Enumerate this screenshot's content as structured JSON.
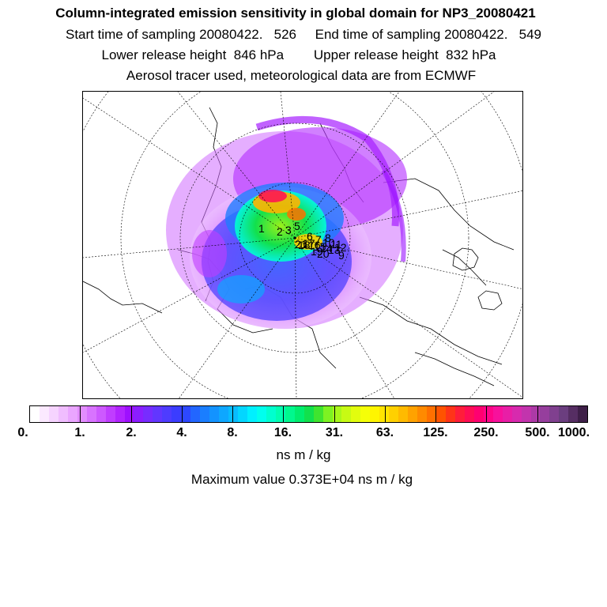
{
  "header": {
    "title": "Column-integrated emission sensitivity in global domain for NP3_20080421",
    "sampling": "Start time of sampling 20080422.   526     End time of sampling 20080422.   549",
    "release": "Lower release height  846 hPa        Upper release height  832 hPa",
    "info": "Aerosol tracer used, meteorological data are from ECMWF"
  },
  "map": {
    "release_labels": [
      "1",
      "2",
      "3",
      "5",
      "6",
      "7",
      "8",
      "9",
      "10",
      "11",
      "12",
      "13",
      "14",
      "15",
      "16",
      "17",
      "18",
      "19",
      "20",
      "21"
    ]
  },
  "colorbar": {
    "tick_labels": [
      "0.",
      "1.",
      "2.",
      "4.",
      "8.",
      "16.",
      "31.",
      "63.",
      "125.",
      "250.",
      "500.",
      "1000."
    ],
    "colors": [
      "#ffffff",
      "#fbe9ff",
      "#f6d4ff",
      "#f0bdff",
      "#eaa6ff",
      "#e28dff",
      "#d873ff",
      "#cd59ff",
      "#c03dff",
      "#b224ff",
      "#9e10ff",
      "#8b1eff",
      "#772cff",
      "#6236ff",
      "#4e3cff",
      "#3b3dff",
      "#2d48ff",
      "#2266ff",
      "#1a7eff",
      "#1393ff",
      "#0ea7ff",
      "#08bcff",
      "#03d6ff",
      "#00f0ff",
      "#00ffee",
      "#00ffcf",
      "#00ffb0",
      "#00f88e",
      "#00ed6e",
      "#12e04c",
      "#3fe42f",
      "#7df222",
      "#a8f71a",
      "#c7fa14",
      "#e2fd0e",
      "#f5ff08",
      "#fff500",
      "#ffe400",
      "#ffd000",
      "#ffba00",
      "#ffa200",
      "#ff8a00",
      "#ff7000",
      "#ff5300",
      "#ff3418",
      "#ff1d3a",
      "#ff0d55",
      "#ff0070",
      "#ff0488",
      "#f7119c",
      "#e81ea6",
      "#d72aae",
      "#c234ad",
      "#ac3aa6",
      "#963e9d",
      "#80408f",
      "#6b3e7f",
      "#562e63",
      "#3e1f48"
    ],
    "units": "ns m / kg"
  },
  "footer": {
    "max_value": "Maximum value  0.373E+04 ns m / kg"
  }
}
